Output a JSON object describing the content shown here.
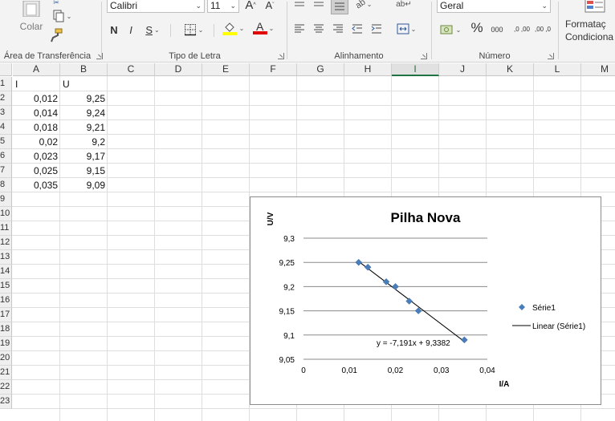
{
  "ribbon": {
    "clipboard": {
      "paste_label": "Colar",
      "group_label": "Área de Transferência"
    },
    "font": {
      "font_name": "Calibri",
      "font_size": "11",
      "bold_label": "N",
      "italic_label": "I",
      "underline_label": "S",
      "grow_label": "A",
      "shrink_label": "A",
      "font_color_label": "A",
      "highlight_color": "#ffff00",
      "font_color": "#e00000",
      "group_label": "Tipo de Letra"
    },
    "alignment": {
      "group_label": "Alinhamento"
    },
    "number": {
      "format": "Geral",
      "percent_label": "%",
      "thousands_label": "000",
      "increase_decimal_label": ",0 ,00",
      "decrease_decimal_label": ",00 ,0",
      "group_label": "Número"
    },
    "styles": {
      "conditional_line1": "Formataç",
      "conditional_line2": "Condiciona"
    }
  },
  "grid": {
    "columns": [
      "A",
      "B",
      "C",
      "D",
      "E",
      "F",
      "G",
      "H",
      "I",
      "J",
      "K",
      "L",
      "M"
    ],
    "selected_column": "I",
    "rows": [
      "1",
      "2",
      "3",
      "4",
      "5",
      "6",
      "7",
      "8",
      "9",
      "10",
      "11",
      "12",
      "13",
      "14",
      "15",
      "16",
      "17",
      "18",
      "19",
      "20",
      "21",
      "22",
      "23"
    ],
    "cells": {
      "A1": "I",
      "B1": "U",
      "A2": "0,012",
      "B2": "9,25",
      "A3": "0,014",
      "B3": "9,24",
      "A4": "0,018",
      "B4": "9,21",
      "A5": "0,02",
      "B5": "9,2",
      "A6": "0,023",
      "B6": "9,17",
      "A7": "0,025",
      "B7": "9,15",
      "A8": "0,035",
      "B8": "9,09"
    }
  },
  "chart_data": {
    "type": "scatter",
    "title": "Pilha Nova",
    "xlabel": "I/A",
    "ylabel": "U/V",
    "xlim": [
      0,
      0.04
    ],
    "ylim": [
      9.05,
      9.3
    ],
    "x_ticks": [
      "0",
      "0,01",
      "0,02",
      "0,03",
      "0,04"
    ],
    "y_ticks": [
      "9,05",
      "9,1",
      "9,15",
      "9,2",
      "9,25",
      "9,3"
    ],
    "grid": "horizontal",
    "legend_position": "right",
    "series": [
      {
        "name": "Série1",
        "x": [
          0.012,
          0.014,
          0.018,
          0.02,
          0.023,
          0.025,
          0.035
        ],
        "y": [
          9.25,
          9.24,
          9.21,
          9.2,
          9.17,
          9.15,
          9.09
        ],
        "color": "#4a7ebb"
      }
    ],
    "trendline": {
      "name": "Linear (Série1)",
      "slope": -7.191,
      "intercept": 9.3382,
      "equation": "y = -7,191x + 9,3382",
      "color": "#000000"
    }
  }
}
